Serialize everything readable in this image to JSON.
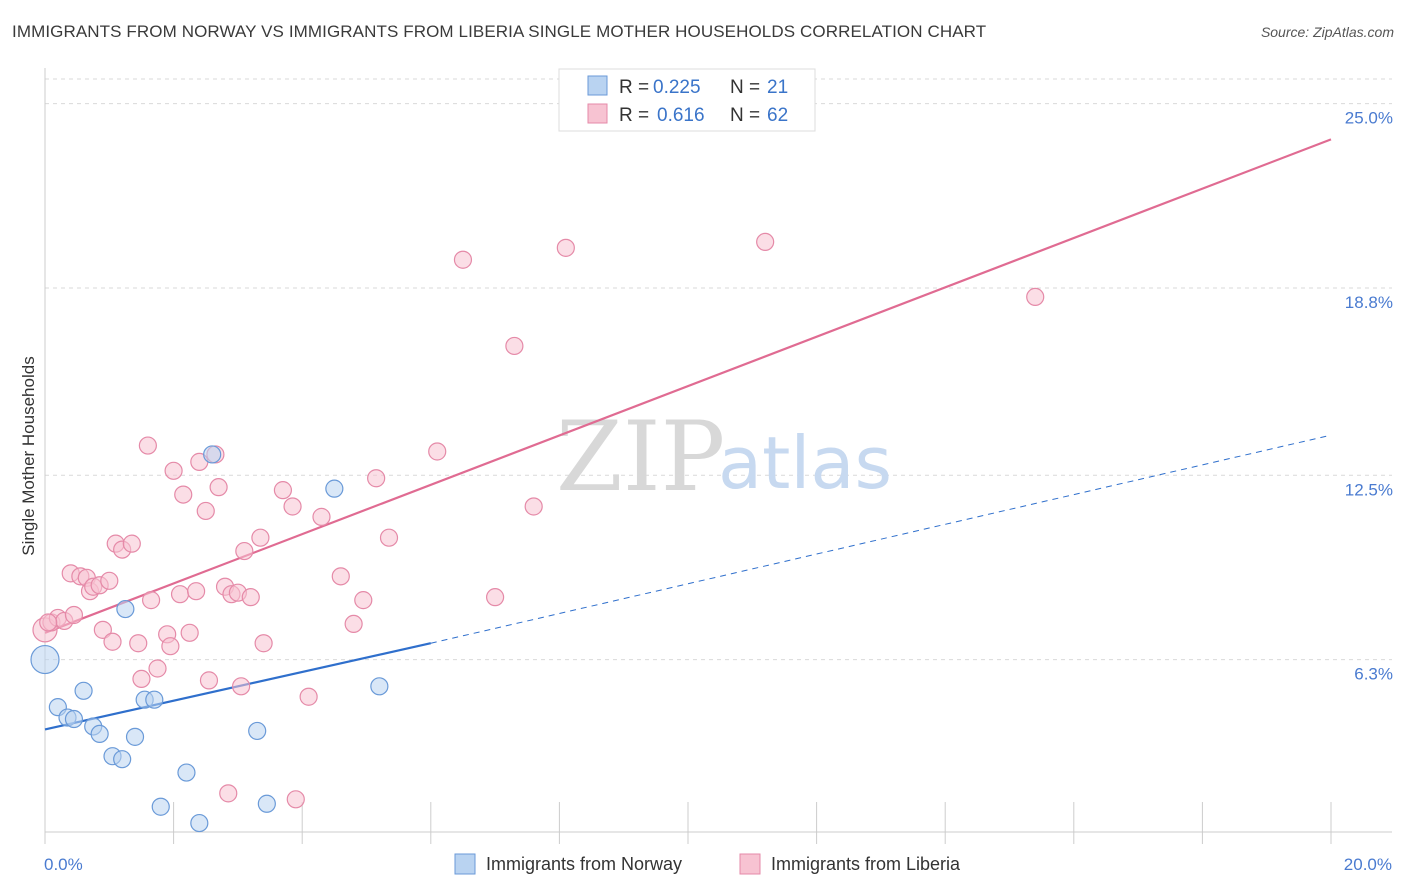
{
  "title": "IMMIGRANTS FROM NORWAY VS IMMIGRANTS FROM LIBERIA SINGLE MOTHER HOUSEHOLDS CORRELATION CHART",
  "source": "Source: ZipAtlas.com",
  "watermark": {
    "zip": "ZIP",
    "atlas": "atlas"
  },
  "colors": {
    "norway_fill": "#b9d3f1",
    "norway_stroke": "#6a9ad8",
    "norway_line": "#2f6fcc",
    "liberia_fill": "#f7c3d2",
    "liberia_stroke": "#e58aa8",
    "liberia_line": "#e06b92",
    "grid": "#d9d9d9",
    "tick_label": "#4a7bd0"
  },
  "legend": {
    "rows": [
      {
        "r_label": "R =",
        "r_value": "0.225",
        "n_label": "N =",
        "n_value": "21"
      },
      {
        "r_label": "R =",
        "r_value": "0.616",
        "n_label": "N =",
        "n_value": "62"
      }
    ]
  },
  "chart_data": {
    "type": "scatter",
    "title": "IMMIGRANTS FROM NORWAY VS IMMIGRANTS FROM LIBERIA SINGLE MOTHER HOUSEHOLDS CORRELATION CHART",
    "xlabel": "",
    "ylabel": "Single Mother Households",
    "xlim": [
      0,
      20
    ],
    "ylim": [
      0.5,
      26.2
    ],
    "x_tick_labels": [
      {
        "value": 0,
        "label": "0.0%"
      },
      {
        "value": 20,
        "label": "20.0%"
      }
    ],
    "y_tick_labels": [
      {
        "value": 25.0,
        "label": "25.0%"
      },
      {
        "value": 18.8,
        "label": "18.8%"
      },
      {
        "value": 12.5,
        "label": "12.5%"
      },
      {
        "value": 6.3,
        "label": "6.3%"
      }
    ],
    "x_minor_ticks": [
      2,
      4,
      6,
      8,
      10,
      12,
      14,
      16,
      18,
      20
    ],
    "series": [
      {
        "name": "Immigrants from Norway",
        "R": 0.225,
        "N": 21,
        "points": [
          {
            "x": 0.0,
            "y": 6.3,
            "size": 14
          },
          {
            "x": 0.2,
            "y": 4.7
          },
          {
            "x": 0.35,
            "y": 4.35
          },
          {
            "x": 0.45,
            "y": 4.3
          },
          {
            "x": 0.6,
            "y": 5.25
          },
          {
            "x": 0.75,
            "y": 4.05
          },
          {
            "x": 0.85,
            "y": 3.8
          },
          {
            "x": 1.05,
            "y": 3.05
          },
          {
            "x": 1.2,
            "y": 2.95
          },
          {
            "x": 1.4,
            "y": 3.7
          },
          {
            "x": 1.25,
            "y": 8.0
          },
          {
            "x": 1.55,
            "y": 4.95
          },
          {
            "x": 1.7,
            "y": 4.95
          },
          {
            "x": 1.8,
            "y": 1.35
          },
          {
            "x": 2.2,
            "y": 2.5
          },
          {
            "x": 2.4,
            "y": 0.8
          },
          {
            "x": 2.6,
            "y": 13.2
          },
          {
            "x": 3.3,
            "y": 3.9
          },
          {
            "x": 3.45,
            "y": 1.45
          },
          {
            "x": 4.5,
            "y": 12.05
          },
          {
            "x": 5.2,
            "y": 5.4
          }
        ],
        "trend": {
          "x0": 0.0,
          "y0": 3.95,
          "x1": 6.0,
          "y1": 6.85,
          "extend_to_x": 20.0,
          "extend_y": 13.85
        }
      },
      {
        "name": "Immigrants from Liberia",
        "R": 0.616,
        "N": 62,
        "points": [
          {
            "x": 0.0,
            "y": 7.3,
            "size": 12
          },
          {
            "x": 0.1,
            "y": 7.55
          },
          {
            "x": 0.2,
            "y": 7.7
          },
          {
            "x": 0.3,
            "y": 7.6
          },
          {
            "x": 0.4,
            "y": 9.2
          },
          {
            "x": 0.45,
            "y": 7.8
          },
          {
            "x": 0.55,
            "y": 9.1
          },
          {
            "x": 0.65,
            "y": 9.05
          },
          {
            "x": 0.7,
            "y": 8.6
          },
          {
            "x": 0.75,
            "y": 8.75
          },
          {
            "x": 0.85,
            "y": 8.8
          },
          {
            "x": 0.9,
            "y": 7.3
          },
          {
            "x": 1.0,
            "y": 8.95
          },
          {
            "x": 1.05,
            "y": 6.9
          },
          {
            "x": 1.1,
            "y": 10.2
          },
          {
            "x": 1.2,
            "y": 10.0
          },
          {
            "x": 1.35,
            "y": 10.2
          },
          {
            "x": 1.45,
            "y": 6.85
          },
          {
            "x": 1.5,
            "y": 5.65
          },
          {
            "x": 1.6,
            "y": 13.5
          },
          {
            "x": 1.65,
            "y": 8.3
          },
          {
            "x": 1.75,
            "y": 6.0
          },
          {
            "x": 1.9,
            "y": 7.15
          },
          {
            "x": 1.95,
            "y": 6.75
          },
          {
            "x": 2.0,
            "y": 12.65
          },
          {
            "x": 2.1,
            "y": 8.5
          },
          {
            "x": 2.15,
            "y": 11.85
          },
          {
            "x": 2.25,
            "y": 7.2
          },
          {
            "x": 2.35,
            "y": 8.6
          },
          {
            "x": 2.4,
            "y": 12.95
          },
          {
            "x": 2.5,
            "y": 11.3
          },
          {
            "x": 2.55,
            "y": 5.6
          },
          {
            "x": 2.65,
            "y": 13.2
          },
          {
            "x": 2.7,
            "y": 12.1
          },
          {
            "x": 2.8,
            "y": 8.75
          },
          {
            "x": 2.85,
            "y": 1.8
          },
          {
            "x": 2.9,
            "y": 8.5
          },
          {
            "x": 3.0,
            "y": 8.55
          },
          {
            "x": 3.05,
            "y": 5.4
          },
          {
            "x": 3.1,
            "y": 9.95
          },
          {
            "x": 3.2,
            "y": 8.4
          },
          {
            "x": 3.35,
            "y": 10.4
          },
          {
            "x": 3.4,
            "y": 6.85
          },
          {
            "x": 3.7,
            "y": 12.0
          },
          {
            "x": 3.85,
            "y": 11.45
          },
          {
            "x": 3.9,
            "y": 1.6
          },
          {
            "x": 4.1,
            "y": 5.05
          },
          {
            "x": 4.3,
            "y": 11.1
          },
          {
            "x": 4.6,
            "y": 9.1
          },
          {
            "x": 4.8,
            "y": 7.5
          },
          {
            "x": 4.95,
            "y": 8.3
          },
          {
            "x": 5.15,
            "y": 12.4
          },
          {
            "x": 5.35,
            "y": 10.4
          },
          {
            "x": 6.1,
            "y": 13.3
          },
          {
            "x": 6.5,
            "y": 19.75
          },
          {
            "x": 7.0,
            "y": 8.4
          },
          {
            "x": 7.3,
            "y": 16.85
          },
          {
            "x": 7.6,
            "y": 11.45
          },
          {
            "x": 8.1,
            "y": 20.15
          },
          {
            "x": 11.2,
            "y": 20.35
          },
          {
            "x": 15.4,
            "y": 18.5
          },
          {
            "x": 0.05,
            "y": 7.55
          }
        ],
        "trend": {
          "x0": 0.0,
          "y0": 7.2,
          "x1": 20.0,
          "y1": 23.8
        }
      }
    ],
    "bottom_legend": [
      "Immigrants from Norway",
      "Immigrants from Liberia"
    ]
  }
}
